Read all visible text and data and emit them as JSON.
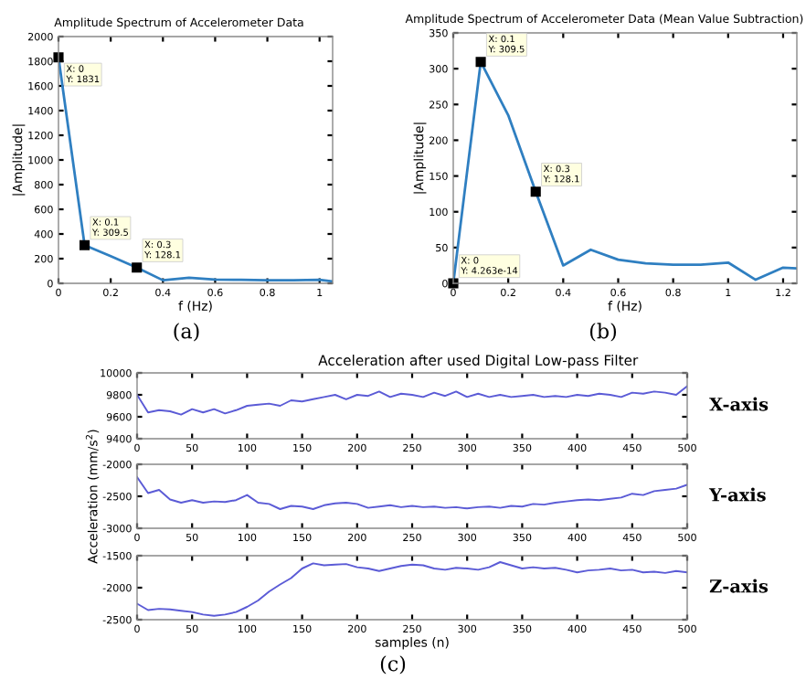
{
  "chart_data": [
    {
      "type": "line",
      "title": "Amplitude Spectrum of Accelerometer Data",
      "xlabel": "f (Hz)",
      "ylabel": "|Amplitude|",
      "x": [
        0,
        0.1,
        0.2,
        0.3,
        0.4,
        0.5,
        0.6,
        0.7,
        0.8,
        0.9,
        1.0,
        1.05
      ],
      "series": [
        {
          "color": "#2f7fc1",
          "values": [
            1831,
            309.5,
            220,
            128.1,
            25,
            45,
            30,
            28,
            25,
            25,
            28,
            15
          ]
        }
      ],
      "xlim": [
        0,
        1.05
      ],
      "xticks": [
        0,
        0.2,
        0.4,
        0.6,
        0.8,
        1
      ],
      "ylim": [
        0,
        2000
      ],
      "yticks": [
        0,
        200,
        400,
        600,
        800,
        1000,
        1200,
        1400,
        1600,
        1800,
        2000
      ],
      "grid": false,
      "legend": false,
      "marker": "none",
      "line_style": "solid",
      "annotations": [
        {
          "text": "X: 0\nY: 1831",
          "x": 0,
          "y": 1831
        },
        {
          "text": "X: 0.1\nY: 309.5",
          "x": 0.1,
          "y": 309.5
        },
        {
          "text": "X: 0.3\nY: 128.1",
          "x": 0.3,
          "y": 128.1
        },
        "(a)"
      ]
    },
    {
      "type": "line",
      "title": "Amplitude Spectrum of Accelerometer Data (Mean Value Subtraction)",
      "xlabel": "f (Hz)",
      "ylabel": "|Amplitude|",
      "x": [
        0,
        0.1,
        0.2,
        0.3,
        0.4,
        0.5,
        0.6,
        0.7,
        0.8,
        0.9,
        1.0,
        1.1,
        1.2,
        1.25
      ],
      "series": [
        {
          "color": "#2f7fc1",
          "values": [
            0,
            309.5,
            235,
            128.1,
            25,
            47,
            33,
            28,
            26,
            26,
            29,
            5,
            22,
            21
          ]
        }
      ],
      "xlim": [
        0,
        1.25
      ],
      "xticks": [
        0,
        0.2,
        0.4,
        0.6,
        0.8,
        1,
        1.2
      ],
      "ylim": [
        0,
        350
      ],
      "yticks": [
        0,
        50,
        100,
        150,
        200,
        250,
        300,
        350
      ],
      "grid": false,
      "legend": false,
      "marker": "none",
      "line_style": "solid",
      "annotations": [
        {
          "text": "X: 0\nY: 4.263e-14",
          "x": 0,
          "y": 0
        },
        {
          "text": "X: 0.1\nY: 309.5",
          "x": 0.1,
          "y": 309.5
        },
        {
          "text": "X: 0.3\nY: 128.1",
          "x": 0.3,
          "y": 128.1
        },
        "(b)"
      ]
    },
    {
      "type": "line",
      "title": "Acceleration after used Digital Low-pass Filter",
      "x": [
        0,
        10,
        20,
        30,
        40,
        50,
        60,
        70,
        80,
        90,
        100,
        110,
        120,
        130,
        140,
        150,
        160,
        170,
        180,
        190,
        200,
        210,
        220,
        230,
        240,
        250,
        260,
        270,
        280,
        290,
        300,
        310,
        320,
        330,
        340,
        350,
        360,
        370,
        380,
        390,
        400,
        410,
        420,
        430,
        440,
        450,
        460,
        470,
        480,
        490,
        500
      ],
      "series": [
        {
          "name": "X-axis",
          "color": "#5b5bd6",
          "values": [
            9800,
            9640,
            9660,
            9650,
            9620,
            9670,
            9640,
            9670,
            9630,
            9660,
            9700,
            9710,
            9720,
            9700,
            9750,
            9740,
            9760,
            9780,
            9800,
            9760,
            9800,
            9790,
            9830,
            9780,
            9810,
            9800,
            9780,
            9820,
            9790,
            9830,
            9780,
            9810,
            9780,
            9800,
            9780,
            9790,
            9800,
            9780,
            9790,
            9780,
            9800,
            9790,
            9810,
            9800,
            9780,
            9820,
            9810,
            9830,
            9820,
            9800,
            9880
          ]
        }
      ],
      "xlim": [
        0,
        500
      ],
      "xticks": [
        0,
        50,
        100,
        150,
        200,
        250,
        300,
        350,
        400,
        450,
        500
      ],
      "ylim": [
        9400,
        10000
      ],
      "yticks": [
        9400,
        9600,
        9800,
        10000
      ],
      "grid": false,
      "legend": false,
      "marker": "none",
      "line_style": "solid"
    },
    {
      "type": "line",
      "ylabel": "Acceleration (mm/s$^{2}$)",
      "x": [
        0,
        10,
        20,
        30,
        40,
        50,
        60,
        70,
        80,
        90,
        100,
        110,
        120,
        130,
        140,
        150,
        160,
        170,
        180,
        190,
        200,
        210,
        220,
        230,
        240,
        250,
        260,
        270,
        280,
        290,
        300,
        310,
        320,
        330,
        340,
        350,
        360,
        370,
        380,
        390,
        400,
        410,
        420,
        430,
        440,
        450,
        460,
        470,
        480,
        490,
        500
      ],
      "series": [
        {
          "name": "Y-axis",
          "color": "#5b5bd6",
          "values": [
            -2200,
            -2450,
            -2400,
            -2550,
            -2600,
            -2560,
            -2600,
            -2580,
            -2590,
            -2560,
            -2480,
            -2600,
            -2620,
            -2700,
            -2650,
            -2660,
            -2700,
            -2640,
            -2610,
            -2600,
            -2620,
            -2680,
            -2660,
            -2640,
            -2670,
            -2650,
            -2670,
            -2660,
            -2680,
            -2670,
            -2690,
            -2670,
            -2660,
            -2680,
            -2650,
            -2660,
            -2620,
            -2630,
            -2600,
            -2580,
            -2560,
            -2550,
            -2560,
            -2540,
            -2520,
            -2460,
            -2480,
            -2420,
            -2400,
            -2380,
            -2320
          ]
        }
      ],
      "xlim": [
        0,
        500
      ],
      "xticks": [
        0,
        50,
        100,
        150,
        200,
        250,
        300,
        350,
        400,
        450,
        500
      ],
      "ylim": [
        -3000,
        -2000
      ],
      "yticks": [
        -3000,
        -2500,
        -2000
      ],
      "grid": false,
      "legend": false,
      "marker": "none",
      "line_style": "solid"
    },
    {
      "type": "line",
      "xlabel": "samples (n)",
      "x": [
        0,
        10,
        20,
        30,
        40,
        50,
        60,
        70,
        80,
        90,
        100,
        110,
        120,
        130,
        140,
        150,
        160,
        170,
        180,
        190,
        200,
        210,
        220,
        230,
        240,
        250,
        260,
        270,
        280,
        290,
        300,
        310,
        320,
        330,
        340,
        350,
        360,
        370,
        380,
        390,
        400,
        410,
        420,
        430,
        440,
        450,
        460,
        470,
        480,
        490,
        500
      ],
      "series": [
        {
          "name": "Z-axis",
          "color": "#5b5bd6",
          "values": [
            -2250,
            -2350,
            -2330,
            -2340,
            -2360,
            -2380,
            -2420,
            -2440,
            -2420,
            -2380,
            -2300,
            -2200,
            -2060,
            -1950,
            -1850,
            -1700,
            -1620,
            -1650,
            -1640,
            -1630,
            -1680,
            -1700,
            -1740,
            -1700,
            -1660,
            -1640,
            -1650,
            -1700,
            -1720,
            -1690,
            -1700,
            -1720,
            -1680,
            -1600,
            -1650,
            -1700,
            -1680,
            -1700,
            -1690,
            -1720,
            -1760,
            -1730,
            -1720,
            -1700,
            -1730,
            -1720,
            -1760,
            -1750,
            -1770,
            -1740,
            -1760
          ]
        }
      ],
      "xlim": [
        0,
        500
      ],
      "xticks": [
        0,
        50,
        100,
        150,
        200,
        250,
        300,
        350,
        400,
        450,
        500
      ],
      "ylim": [
        -2500,
        -1500
      ],
      "yticks": [
        -2500,
        -2000,
        -1500
      ],
      "grid": false,
      "legend": false,
      "marker": "none",
      "line_style": "solid",
      "annotations": [
        "(c)"
      ]
    }
  ]
}
